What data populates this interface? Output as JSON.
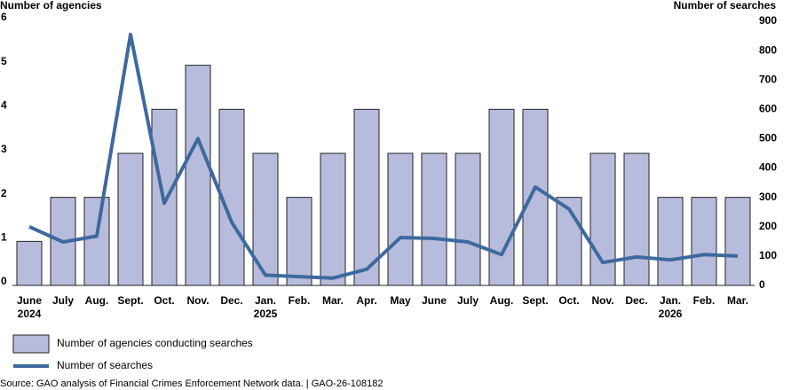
{
  "chart_data": {
    "type": "bar",
    "y_axis_label": "Number of agencies",
    "y2_axis_label": "Number of searches",
    "categories": [
      "June",
      "July",
      "Aug.",
      "Sept.",
      "Oct.",
      "Nov.",
      "Dec.",
      "Jan.",
      "Feb.",
      "Mar.",
      "Apr.",
      "May",
      "June",
      "July",
      "Aug.",
      "Sept.",
      "Oct.",
      "Nov.",
      "Dec.",
      "Jan.",
      "Feb.",
      "Mar."
    ],
    "years": [
      "2024",
      null,
      null,
      null,
      null,
      null,
      null,
      "2025",
      null,
      null,
      null,
      null,
      null,
      null,
      null,
      null,
      null,
      null,
      null,
      "2026",
      null,
      null
    ],
    "series": [
      {
        "name": "Number of agencies conducting searches",
        "type": "bar",
        "color": "#b8bcdc",
        "values": [
          1,
          2,
          2,
          3,
          4,
          5,
          4,
          3,
          2,
          3,
          4,
          3,
          3,
          3,
          4,
          4,
          2,
          3,
          3,
          2,
          2,
          2
        ]
      },
      {
        "name": "Number of searches",
        "type": "line",
        "axis": "y2",
        "color": "#3d6a9e",
        "values": [
          200,
          148,
          168,
          855,
          280,
          500,
          215,
          35,
          30,
          25,
          55,
          163,
          160,
          148,
          105,
          335,
          260,
          78,
          97,
          87,
          105,
          100
        ]
      }
    ],
    "ylim": [
      0,
      6
    ],
    "yticks": [
      0,
      1,
      2,
      3,
      4,
      5,
      6
    ],
    "y2lim": [
      0,
      900
    ],
    "y2ticks": [
      0,
      100,
      200,
      300,
      400,
      500,
      600,
      700,
      800,
      900
    ],
    "grid": false,
    "legend": "bottom-left",
    "source": "Source: GAO analysis of Financial Crimes Enforcement Network data.  |  GAO-26-108182"
  }
}
